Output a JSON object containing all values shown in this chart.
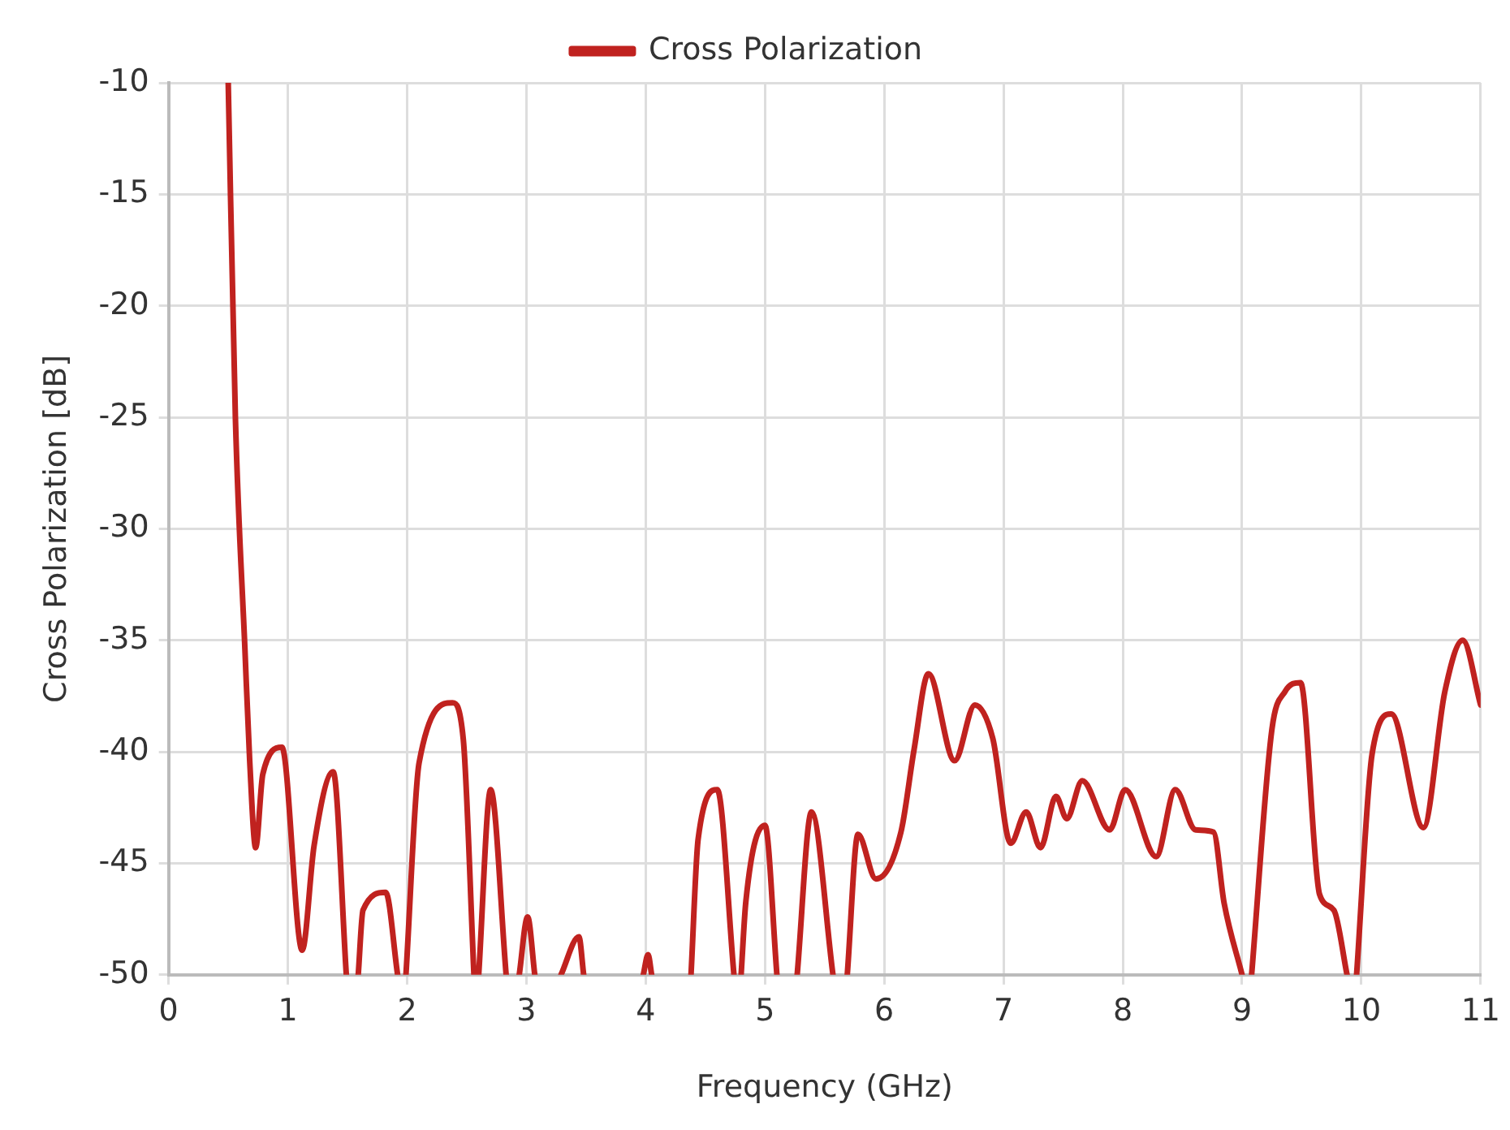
{
  "chart_data": {
    "type": "line",
    "xlabel": "Frequency (GHz)",
    "ylabel": "Cross Polarization [dB]",
    "xlim": [
      0,
      11
    ],
    "ylim": [
      -50,
      -10
    ],
    "xticks": [
      0,
      1,
      2,
      3,
      4,
      5,
      6,
      7,
      8,
      9,
      10,
      11
    ],
    "yticks": [
      -50,
      -45,
      -40,
      -35,
      -30,
      -25,
      -20,
      -15,
      -10
    ],
    "grid": true,
    "legend": "top",
    "marker": "none",
    "line_style": "solid",
    "x": [
      0.5,
      0.56,
      0.64,
      0.68,
      0.73,
      0.79,
      0.95,
      1.12,
      1.22,
      1.38,
      1.49,
      1.54,
      1.59,
      1.63,
      1.82,
      1.92,
      1.96,
      1.99,
      2.1,
      2.38,
      2.47,
      2.56,
      2.58,
      2.6,
      2.7,
      2.83,
      2.88,
      2.94,
      3.01,
      3.07,
      3.18,
      3.29,
      3.44,
      3.48,
      3.73,
      3.98,
      4.02,
      4.05,
      4.2,
      4.38,
      4.44,
      4.6,
      4.74,
      4.77,
      4.8,
      4.84,
      5.0,
      5.1,
      5.18,
      5.27,
      5.39,
      5.57,
      5.63,
      5.69,
      5.78,
      5.93,
      6.14,
      6.25,
      6.37,
      6.59,
      6.76,
      6.91,
      7.06,
      7.19,
      7.31,
      7.44,
      7.53,
      7.66,
      7.89,
      8.02,
      8.28,
      8.44,
      8.61,
      8.76,
      8.85,
      9.0,
      9.04,
      9.08,
      9.25,
      9.36,
      9.49,
      9.65,
      9.77,
      9.88,
      9.92,
      9.96,
      10.09,
      10.25,
      10.52,
      10.7,
      10.85,
      11.0
    ],
    "series": [
      {
        "name": "Cross Polarization",
        "color": "#c0221f",
        "values": [
          -10,
          -25,
          -35.4,
          -40.4,
          -44.3,
          -41.0,
          -39.8,
          -48.9,
          -44.2,
          -40.9,
          -50,
          null,
          -50,
          -47.1,
          -46.3,
          -50,
          null,
          -50,
          -40.5,
          -37.8,
          -39.4,
          -50,
          null,
          -50,
          -41.7,
          -50,
          null,
          -50,
          -47.4,
          -50,
          null,
          -50,
          -48.3,
          -50,
          null,
          -50,
          -49.1,
          -50,
          null,
          -50,
          -43.9,
          -41.7,
          -50,
          null,
          -50,
          -46.7,
          -43.3,
          -50,
          null,
          -50,
          -42.7,
          -50,
          null,
          -50,
          -43.7,
          -45.7,
          -43.6,
          -39.9,
          -36.5,
          -40.4,
          -37.9,
          -39.4,
          -44.1,
          -42.7,
          -44.3,
          -42.0,
          -43.0,
          -41.3,
          -43.5,
          -41.7,
          -44.7,
          -41.7,
          -43.5,
          -43.6,
          -46.8,
          -50,
          null,
          -50,
          -39.0,
          -37.3,
          -36.9,
          -46.4,
          -47.1,
          -50,
          null,
          -50,
          -40.1,
          -38.3,
          -43.4,
          -37.3,
          -35.0,
          -37.9
        ]
      }
    ]
  }
}
